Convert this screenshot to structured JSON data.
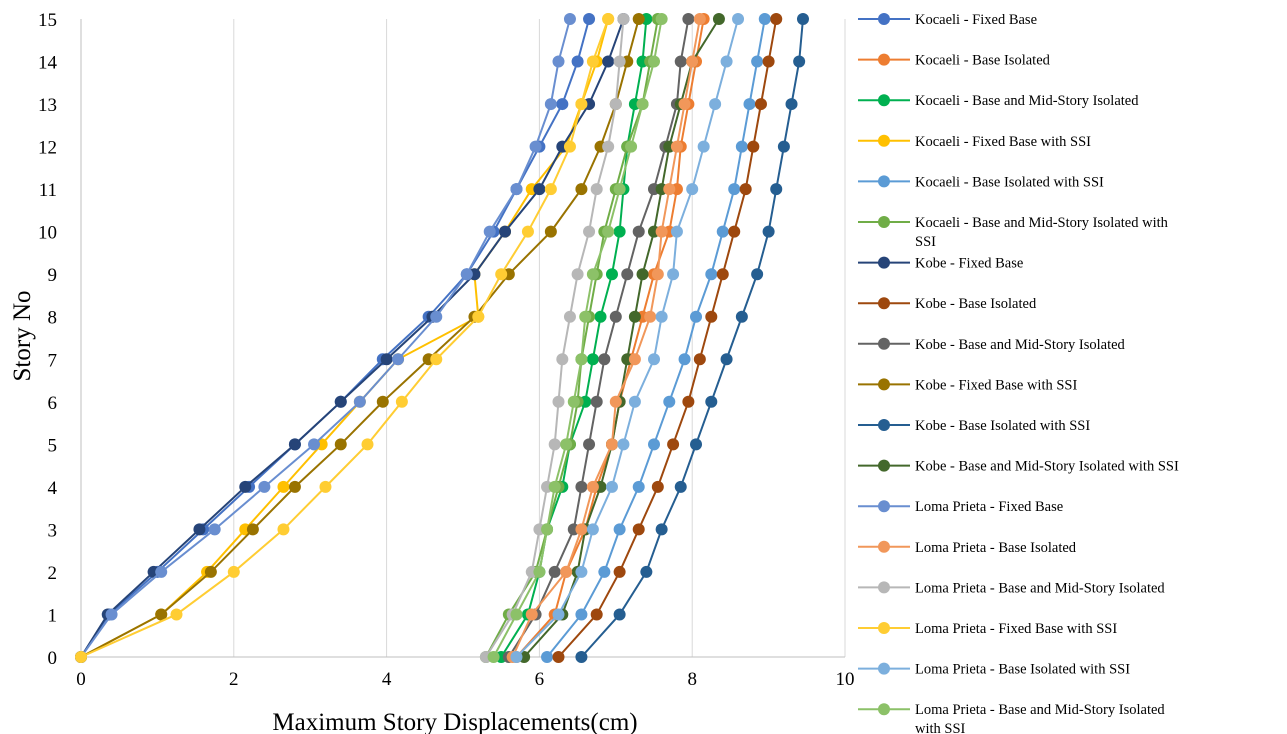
{
  "chart_data": {
    "type": "line",
    "title": "",
    "xlabel": "Maximum Story Displacements(cm)",
    "ylabel": "Story No",
    "xlim": [
      0,
      10
    ],
    "ylim": [
      0,
      15
    ],
    "xticks": [
      "0",
      "2",
      "4",
      "6",
      "8",
      "10"
    ],
    "yticks": [
      "0",
      "1",
      "2",
      "3",
      "4",
      "5",
      "6",
      "7",
      "8",
      "9",
      "10",
      "11",
      "12",
      "13",
      "14",
      "15"
    ],
    "grid": "vertical",
    "legend_position": "right",
    "y": [
      0,
      1,
      2,
      3,
      4,
      5,
      6,
      7,
      8,
      9,
      10,
      11,
      12,
      13,
      14,
      15
    ],
    "series": [
      {
        "name": "Kocaeli - Fixed Base",
        "color": "#4472C4",
        "values": [
          0,
          0.37,
          1.0,
          1.6,
          2.2,
          2.8,
          3.4,
          3.95,
          4.55,
          5.05,
          5.4,
          5.7,
          6.0,
          6.3,
          6.5,
          6.65
        ]
      },
      {
        "name": "Kocaeli - Base Isolated",
        "color": "#ED7D31",
        "values": [
          5.7,
          6.2,
          6.35,
          6.6,
          6.75,
          6.95,
          7.05,
          7.2,
          7.35,
          7.5,
          7.7,
          7.8,
          7.85,
          7.95,
          8.05,
          8.15
        ]
      },
      {
        "name": "Kocaeli - Base and Mid-Story Isolated",
        "color": "#00B050",
        "values": [
          5.5,
          5.85,
          6.0,
          6.1,
          6.3,
          6.4,
          6.6,
          6.7,
          6.8,
          6.95,
          7.05,
          7.1,
          7.15,
          7.25,
          7.35,
          7.4
        ]
      },
      {
        "name": "Kocaeli - Fixed Base with SSI",
        "color": "#FFC000",
        "values": [
          0,
          1.05,
          1.65,
          2.15,
          2.65,
          3.15,
          3.65,
          4.15,
          5.2,
          5.15,
          5.55,
          5.9,
          6.35,
          6.55,
          6.75,
          6.9
        ]
      },
      {
        "name": "Kocaeli - Base Isolated with SSI",
        "color": "#5B9BD5",
        "values": [
          6.1,
          6.55,
          6.85,
          7.05,
          7.3,
          7.5,
          7.7,
          7.9,
          8.05,
          8.25,
          8.4,
          8.55,
          8.65,
          8.75,
          8.85,
          8.95
        ]
      },
      {
        "name": "Kocaeli - Base and Mid-Story Isolated with SSI",
        "color": "#70AD47",
        "values": [
          5.3,
          5.6,
          5.95,
          6.1,
          6.25,
          6.4,
          6.5,
          6.55,
          6.65,
          6.75,
          6.85,
          7.0,
          7.15,
          7.35,
          7.45,
          7.55
        ]
      },
      {
        "name": "Kobe - Fixed Base",
        "color": "#264478",
        "values": [
          0,
          0.35,
          0.95,
          1.55,
          2.15,
          2.8,
          3.4,
          4.0,
          4.6,
          5.15,
          5.55,
          6.0,
          6.3,
          6.65,
          6.9,
          7.1
        ]
      },
      {
        "name": "Kobe - Base Isolated",
        "color": "#9E480E",
        "values": [
          6.25,
          6.75,
          7.05,
          7.3,
          7.55,
          7.75,
          7.95,
          8.1,
          8.25,
          8.4,
          8.55,
          8.7,
          8.8,
          8.9,
          9.0,
          9.1
        ]
      },
      {
        "name": "Kobe - Base and Mid-Story Isolated",
        "color": "#636363",
        "values": [
          5.6,
          5.95,
          6.2,
          6.45,
          6.55,
          6.65,
          6.75,
          6.85,
          7.0,
          7.15,
          7.3,
          7.5,
          7.65,
          7.8,
          7.85,
          7.95
        ]
      },
      {
        "name": "Kobe - Fixed Base with SSI",
        "color": "#997300",
        "values": [
          0,
          1.05,
          1.7,
          2.25,
          2.8,
          3.4,
          3.95,
          4.55,
          5.15,
          5.6,
          6.15,
          6.55,
          6.8,
          7.0,
          7.15,
          7.3
        ]
      },
      {
        "name": "Kobe - Base Isolated with SSI",
        "color": "#255E91",
        "values": [
          6.55,
          7.05,
          7.4,
          7.6,
          7.85,
          8.05,
          8.25,
          8.45,
          8.65,
          8.85,
          9.0,
          9.1,
          9.2,
          9.3,
          9.4,
          9.45
        ]
      },
      {
        "name": "Kobe - Base and Mid-Story Isolated with SSI",
        "color": "#43682B",
        "values": [
          5.8,
          6.3,
          6.5,
          6.6,
          6.8,
          6.95,
          7.05,
          7.15,
          7.25,
          7.35,
          7.5,
          7.6,
          7.7,
          7.85,
          8.0,
          8.35
        ]
      },
      {
        "name": "Loma Prieta - Fixed Base",
        "color": "#698ED0",
        "values": [
          0,
          0.4,
          1.05,
          1.75,
          2.4,
          3.05,
          3.65,
          4.15,
          4.65,
          5.05,
          5.35,
          5.7,
          5.95,
          6.15,
          6.25,
          6.4
        ]
      },
      {
        "name": "Loma Prieta - Base Isolated",
        "color": "#F1975A",
        "values": [
          5.65,
          5.9,
          6.35,
          6.55,
          6.7,
          6.95,
          7.0,
          7.25,
          7.45,
          7.55,
          7.6,
          7.7,
          7.8,
          7.9,
          8.0,
          8.1
        ]
      },
      {
        "name": "Loma Prieta - Base and Mid-Story Isolated",
        "color": "#B7B7B7",
        "values": [
          5.3,
          5.65,
          5.9,
          6.0,
          6.1,
          6.2,
          6.25,
          6.3,
          6.4,
          6.5,
          6.65,
          6.75,
          6.9,
          7.0,
          7.05,
          7.1
        ]
      },
      {
        "name": "Loma Prieta - Fixed Base with SSI",
        "color": "#FFCD33",
        "values": [
          0,
          1.25,
          2.0,
          2.65,
          3.2,
          3.75,
          4.2,
          4.65,
          5.2,
          5.5,
          5.85,
          6.15,
          6.4,
          6.55,
          6.7,
          6.9
        ]
      },
      {
        "name": "Loma Prieta - Base Isolated with SSI",
        "color": "#7CAFDD",
        "values": [
          5.7,
          6.25,
          6.55,
          6.7,
          6.95,
          7.1,
          7.25,
          7.5,
          7.6,
          7.75,
          7.8,
          8.0,
          8.15,
          8.3,
          8.45,
          8.6
        ]
      },
      {
        "name": "Loma Prieta - Base and Mid-Story Isolated with SSI",
        "color": "#8CC168",
        "values": [
          5.4,
          5.7,
          6.0,
          6.1,
          6.2,
          6.35,
          6.45,
          6.55,
          6.6,
          6.7,
          6.9,
          7.05,
          7.2,
          7.35,
          7.5,
          7.6
        ]
      }
    ]
  }
}
